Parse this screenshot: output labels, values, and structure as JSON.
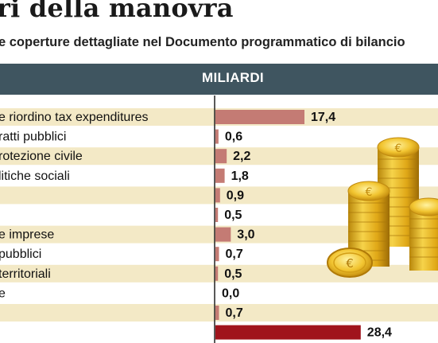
{
  "title": "ri della manovra",
  "subtitle": "e coperture dettagliate nel Documento programmatico di bilancio",
  "header_label": "MILIARDI",
  "colors": {
    "header_band": "#3f5560",
    "row_stripe": "#f3e9c6",
    "bar": "#c47b74",
    "bar_total": "#a0141c",
    "axis": "#222222"
  },
  "chart_data": {
    "type": "bar",
    "orientation": "horizontal",
    "categories": [
      "e riordino tax expenditures",
      "ratti pubblici",
      "rotezione civile",
      "litiche sociali",
      "",
      "",
      "e imprese",
      "pubblici",
      "territoriali",
      "e",
      "",
      ""
    ],
    "values": [
      17.4,
      0.6,
      2.2,
      1.8,
      0.9,
      0.5,
      3.0,
      0.7,
      0.5,
      0.0,
      0.7,
      28.4
    ],
    "value_labels": [
      "17,4",
      "0,6",
      "2,2",
      "1,8",
      "0,9",
      "0,5",
      "3,0",
      "0,7",
      "0,5",
      "0,0",
      "0,7",
      "28,4"
    ],
    "total_index": 11,
    "xlim": [
      0,
      28.4
    ],
    "xlabel": "MILIARDI",
    "ylabel": "",
    "title": "ri della manovra"
  }
}
